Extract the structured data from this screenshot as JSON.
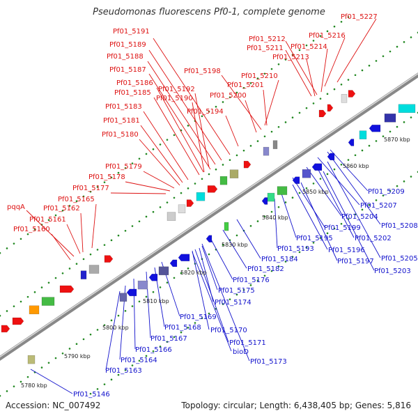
{
  "title": "Pseudomonas fluorescens Pf0-1, complete genome",
  "footer": {
    "accession": "Accession: NC_007492",
    "summary": "Topology: circular; Length: 6,438,405 bp; Genes: 5,816"
  },
  "colors": {
    "forward": "#ee1111",
    "reverse": "#1111dd",
    "backbone": "#999999",
    "tick": "#228822"
  },
  "scale_labels": [
    "5780 kbp",
    "5790 kbp",
    "5800 kbp",
    "5810 kbp",
    "5820 kbp",
    "5830 kbp",
    "5840 kbp",
    "5850 kbp",
    "5860 kbp",
    "5870 kbp"
  ],
  "forward_labels": [
    "Pf01_5227",
    "Pf01_5216",
    "Pf01_5212",
    "Pf01_5214",
    "Pf01_5211",
    "Pf01_5213",
    "Pf01_5191",
    "Pf01_5189",
    "Pf01_5188",
    "Pf01_5187",
    "Pf01_5198",
    "Pf01_5210",
    "Pf01_5186",
    "Pf01_5192",
    "Pf01_5201",
    "Pf01_5185",
    "Pf01_5190",
    "Pf01_5200",
    "Pf01_5183",
    "Pf01_5194",
    "Pf01_5181",
    "Pf01_5180",
    "Pf01_5179",
    "Pf01_5178",
    "Pf01_5177",
    "pqqA",
    "Pf01_5165",
    "Pf01_5162",
    "Pf01_5161",
    "Pf01_5160"
  ],
  "reverse_labels": [
    "Pf01_5209",
    "Pf01_5207",
    "Pf01_5204",
    "Pf01_5208",
    "Pf01_5199",
    "Pf01_5202",
    "Pf01_5195",
    "Pf01_5196",
    "Pf01_5193",
    "Pf01_5205",
    "Pf01_5197",
    "Pf01_5203",
    "Pf01_5184",
    "Pf01_5182",
    "Pf01_5176",
    "Pf01_5175",
    "Pf01_5174",
    "Pf01_5169",
    "Pf01_5168",
    "Pf01_5170",
    "Pf01_5167",
    "Pf01_5171",
    "Pf01_5166",
    "bioD",
    "Pf01_5164",
    "Pf01_5173",
    "Pf01_5163",
    "Pf01_5146"
  ]
}
